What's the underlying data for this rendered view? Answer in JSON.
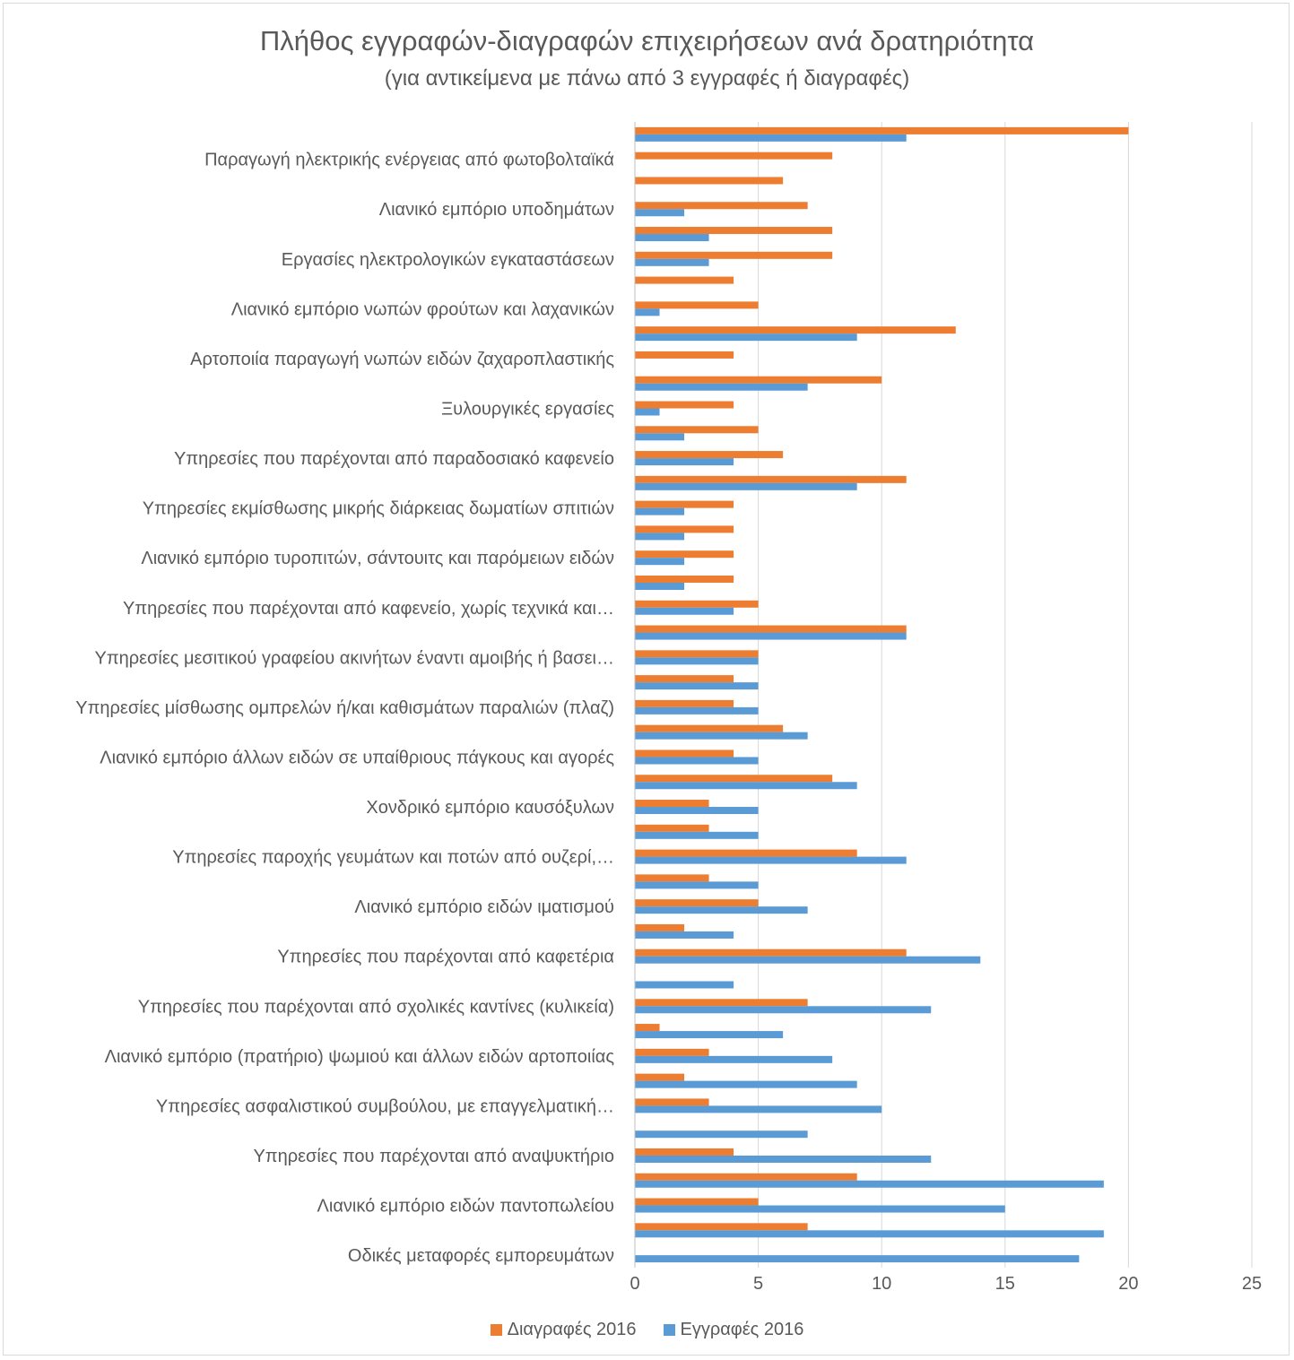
{
  "chart_data": {
    "type": "bar",
    "orientation": "horizontal",
    "title": "Πλήθος εγγραφών-διαγραφών επιχειρήσεων ανά δρατηριότητα",
    "subtitle": "(για αντικείμενα με πάνω από 3 εγγραφές ή διαγραφές)",
    "xlim": [
      0,
      25
    ],
    "xticks": [
      "0",
      "5",
      "10",
      "15",
      "20",
      "25"
    ],
    "grid": true,
    "legend_position": "bottom",
    "category_labels": [
      "Παραγωγή ηλεκτρικής ενέργειας από φωτοβολταϊκά",
      "Λιανικό εμπόριο υποδημάτων",
      "Εργασίες ηλεκτρολογικών εγκαταστάσεων",
      "Λιανικό εμπόριο νωπών φρούτων και λαχανικών",
      "Αρτοποιία παραγωγή νωπών ειδών ζαχαροπλαστικής",
      "Ξυλουργικές εργασίες",
      "Υπηρεσίες που παρέχονται από παραδοσιακό καφενείο",
      "Υπηρεσίες εκμίσθωσης μικρής διάρκειας δωματίων σπιτιών",
      "Λιανικό εμπόριο τυροπιτών, σάντουιτς και παρόμειων ειδών",
      "Υπηρεσίες που παρέχονται από καφενείο, χωρίς τεχνικά και…",
      "Υπηρεσίες μεσιτικού γραφείου ακινήτων έναντι αμοιβής ή βασει…",
      "Υπηρεσίες μίσθωσης ομπρελών ή/και καθισμάτων παραλιών (πλαζ)",
      "Λιανικό εμπόριο άλλων ειδών σε υπαίθριους πάγκους και αγορές",
      "Χονδρικό εμπόριο καυσόξυλων",
      "Υπηρεσίες παροχής γευμάτων και ποτών από ουζερί,…",
      "Λιανικό εμπόριο ειδών ιματισμού",
      "Υπηρεσίες που παρέχονται από καφετέρια",
      "Υπηρεσίες που παρέχονται από σχολικές καντίνες (κυλικεία)",
      "Λιανικό εμπόριο (πρατήριο) ψωμιού και άλλων ειδών αρτοποιίας",
      "Υπηρεσίες ασφαλιστικού συμβούλου, με επαγγελματική…",
      "Υπηρεσίες που παρέχονται από αναψυκτήριο",
      "Λιανικό εμπόριο ειδών παντοπωλείου",
      "Οδικές μεταφορές εμπορευμάτων"
    ],
    "labeled_row_indices": [
      1,
      3,
      5,
      7,
      9,
      11,
      13,
      15,
      17,
      19,
      21,
      23,
      25,
      27,
      29,
      31,
      33,
      35,
      37,
      39,
      41,
      43,
      45
    ],
    "series": [
      {
        "name": "Διαγραφές 2016",
        "color": "#ED7D31",
        "values": [
          20,
          8,
          6,
          7,
          8,
          8,
          4,
          5,
          13,
          4,
          10,
          4,
          5,
          6,
          11,
          4,
          4,
          4,
          4,
          5,
          11,
          5,
          4,
          4,
          6,
          4,
          8,
          3,
          3,
          9,
          3,
          5,
          2,
          11,
          0,
          7,
          1,
          3,
          2,
          3,
          0,
          4,
          9,
          5,
          7,
          0
        ]
      },
      {
        "name": "Εγγραφές 2016",
        "color": "#5B9BD5",
        "values": [
          11,
          0,
          0,
          2,
          3,
          3,
          0,
          1,
          9,
          0,
          7,
          1,
          2,
          4,
          9,
          2,
          2,
          2,
          2,
          4,
          11,
          5,
          5,
          5,
          7,
          5,
          9,
          5,
          5,
          11,
          5,
          7,
          4,
          14,
          4,
          12,
          6,
          8,
          9,
          10,
          7,
          12,
          19,
          15,
          19,
          18
        ]
      }
    ]
  }
}
